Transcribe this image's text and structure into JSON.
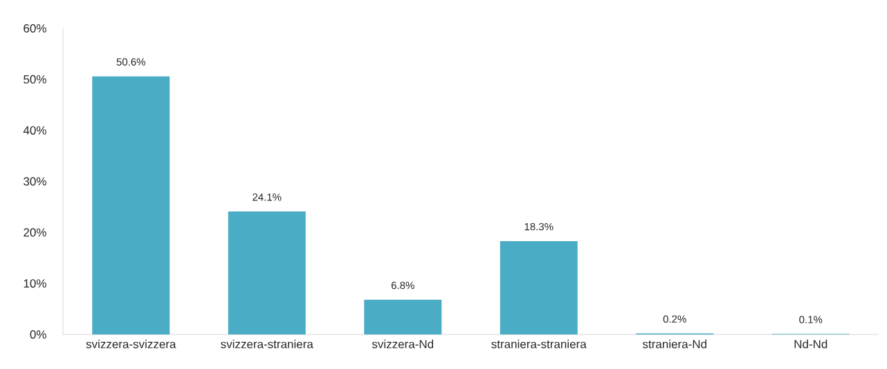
{
  "chart_data": {
    "type": "bar",
    "categories": [
      "svizzera-svizzera",
      "svizzera-straniera",
      "svizzera-Nd",
      "straniera-straniera",
      "straniera-Nd",
      "Nd-Nd"
    ],
    "values": [
      50.6,
      24.1,
      6.8,
      18.3,
      0.2,
      0.1
    ],
    "value_labels": [
      "50.6%",
      "24.1%",
      "6.8%",
      "18.3%",
      "0.2%",
      "0.1%"
    ],
    "color": "#4bacc6",
    "ylim": [
      0,
      60
    ],
    "yticks": [
      {
        "value": 0,
        "label": "0%"
      },
      {
        "value": 10,
        "label": "10%"
      },
      {
        "value": 20,
        "label": "20%"
      },
      {
        "value": 30,
        "label": "30%"
      },
      {
        "value": 40,
        "label": "40%"
      },
      {
        "value": 50,
        "label": "50%"
      },
      {
        "value": 60,
        "label": "60%"
      }
    ],
    "grid": false
  }
}
